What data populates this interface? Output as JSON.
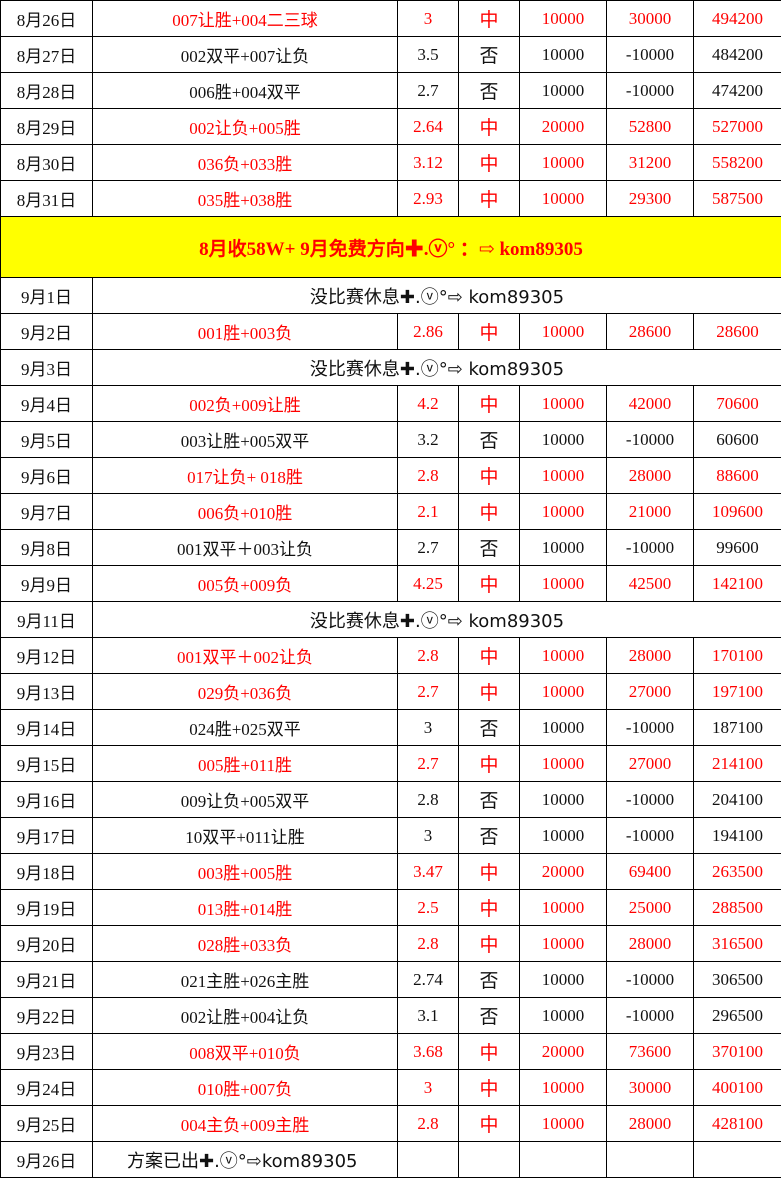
{
  "colors": {
    "win": "#ff0000",
    "banner_bg": "#ffff00"
  },
  "rows_top": [
    {
      "date": "8月26日",
      "bet": "007让胜+004二三球",
      "odds": "3",
      "result": "中",
      "stake": "10000",
      "profit": "30000",
      "balance": "494200"
    },
    {
      "date": "8月27日",
      "bet": "002双平+007让负",
      "odds": "3.5",
      "result": "否",
      "stake": "10000",
      "profit": "-10000",
      "balance": "484200"
    },
    {
      "date": "8月28日",
      "bet": "006胜+004双平",
      "odds": "2.7",
      "result": "否",
      "stake": "10000",
      "profit": "-10000",
      "balance": "474200"
    },
    {
      "date": "8月29日",
      "bet": "002让负+005胜",
      "odds": "2.64",
      "result": "中",
      "stake": "20000",
      "profit": "52800",
      "balance": "527000"
    },
    {
      "date": "8月30日",
      "bet": "036负+033胜",
      "odds": "3.12",
      "result": "中",
      "stake": "10000",
      "profit": "31200",
      "balance": "558200"
    },
    {
      "date": "8月31日",
      "bet": "035胜+038胜",
      "odds": "2.93",
      "result": "中",
      "stake": "10000",
      "profit": "29300",
      "balance": "587500"
    }
  ],
  "banner": "8月收58W+   9月免费方向✚.ⓥ° ：⇨     kom89305",
  "rows": [
    {
      "date": "9月1日",
      "rest": "没比赛休息✚.ⓥ°⇨ kom89305"
    },
    {
      "date": "9月2日",
      "bet": "001胜+003负",
      "odds": "2.86",
      "result": "中",
      "stake": "10000",
      "profit": "28600",
      "balance": "28600"
    },
    {
      "date": "9月3日",
      "rest": "没比赛休息✚.ⓥ°⇨ kom89305"
    },
    {
      "date": "9月4日",
      "bet": "002负+009让胜",
      "odds": "4.2",
      "result": "中",
      "stake": "10000",
      "profit": "42000",
      "balance": "70600"
    },
    {
      "date": "9月5日",
      "bet": "003让胜+005双平",
      "odds": "3.2",
      "result": "否",
      "stake": "10000",
      "profit": "-10000",
      "balance": "60600"
    },
    {
      "date": "9月6日",
      "bet": "017让负+ 018胜",
      "odds": "2.8",
      "result": "中",
      "stake": "10000",
      "profit": "28000",
      "balance": "88600"
    },
    {
      "date": "9月7日",
      "bet": "006负+010胜",
      "odds": "2.1",
      "result": "中",
      "stake": "10000",
      "profit": "21000",
      "balance": "109600"
    },
    {
      "date": "9月8日",
      "bet": "001双平＋003让负",
      "odds": "2.7",
      "result": "否",
      "stake": "10000",
      "profit": "-10000",
      "balance": "99600"
    },
    {
      "date": "9月9日",
      "bet": "005负+009负",
      "odds": "4.25",
      "result": "中",
      "stake": "10000",
      "profit": "42500",
      "balance": "142100"
    },
    {
      "date": "9月11日",
      "rest": "没比赛休息✚.ⓥ°⇨ kom89305"
    },
    {
      "date": "9月12日",
      "bet": "001双平＋002让负",
      "odds": "2.8",
      "result": "中",
      "stake": "10000",
      "profit": "28000",
      "balance": "170100"
    },
    {
      "date": "9月13日",
      "bet": "029负+036负",
      "odds": "2.7",
      "result": "中",
      "stake": "10000",
      "profit": "27000",
      "balance": "197100"
    },
    {
      "date": "9月14日",
      "bet": "024胜+025双平",
      "odds": "3",
      "result": "否",
      "stake": "10000",
      "profit": "-10000",
      "balance": "187100"
    },
    {
      "date": "9月15日",
      "bet": "005胜+011胜",
      "odds": "2.7",
      "result": "中",
      "stake": "10000",
      "profit": "27000",
      "balance": "214100"
    },
    {
      "date": "9月16日",
      "bet": "009让负+005双平",
      "odds": "2.8",
      "result": "否",
      "stake": "10000",
      "profit": "-10000",
      "balance": "204100"
    },
    {
      "date": "9月17日",
      "bet": "10双平+011让胜",
      "odds": "3",
      "result": "否",
      "stake": "10000",
      "profit": "-10000",
      "balance": "194100"
    },
    {
      "date": "9月18日",
      "bet": "003胜+005胜",
      "odds": "3.47",
      "result": "中",
      "stake": "20000",
      "profit": "69400",
      "balance": "263500"
    },
    {
      "date": "9月19日",
      "bet": "013胜+014胜",
      "odds": "2.5",
      "result": "中",
      "stake": "10000",
      "profit": "25000",
      "balance": "288500"
    },
    {
      "date": "9月20日",
      "bet": "028胜+033负",
      "odds": "2.8",
      "result": "中",
      "stake": "10000",
      "profit": "28000",
      "balance": "316500"
    },
    {
      "date": "9月21日",
      "bet": "021主胜+026主胜",
      "odds": "2.74",
      "result": "否",
      "stake": "10000",
      "profit": "-10000",
      "balance": "306500"
    },
    {
      "date": "9月22日",
      "bet": "002让胜+004让负",
      "odds": "3.1",
      "result": "否",
      "stake": "10000",
      "profit": "-10000",
      "balance": "296500"
    },
    {
      "date": "9月23日",
      "bet": "008双平+010负",
      "odds": "3.68",
      "result": "中",
      "stake": "20000",
      "profit": "73600",
      "balance": "370100"
    },
    {
      "date": "9月24日",
      "bet": "010胜+007负",
      "odds": "3",
      "result": "中",
      "stake": "10000",
      "profit": "30000",
      "balance": "400100"
    },
    {
      "date": "9月25日",
      "bet": "004主负+009主胜",
      "odds": "2.8",
      "result": "中",
      "stake": "10000",
      "profit": "28000",
      "balance": "428100"
    },
    {
      "date": "9月26日",
      "plan": "方案已出✚.ⓥ°⇨kom89305"
    }
  ]
}
